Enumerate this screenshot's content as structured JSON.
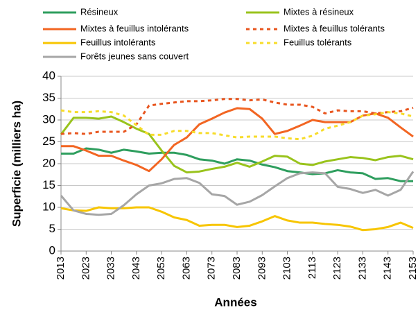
{
  "chart_data": {
    "type": "line",
    "x_label": "Années",
    "y_label": "Superficie (milliers ha)",
    "x": [
      2013,
      2018,
      2023,
      2028,
      2033,
      2038,
      2043,
      2048,
      2053,
      2058,
      2063,
      2068,
      2073,
      2078,
      2083,
      2088,
      2093,
      2098,
      2103,
      2108,
      2113,
      2118,
      2123,
      2128,
      2133,
      2138,
      2143,
      2148,
      2153
    ],
    "xlim": [
      2013,
      2153
    ],
    "xticks": [
      2013,
      2023,
      2033,
      2043,
      2053,
      2063,
      2073,
      2083,
      2093,
      2103,
      2113,
      2123,
      2133,
      2143,
      2153
    ],
    "ylim": [
      0,
      40
    ],
    "yticks": [
      0,
      5,
      10,
      15,
      20,
      25,
      30,
      35,
      40
    ],
    "grid": true,
    "series": [
      {
        "name": "Résineux",
        "color": "#2e9e5e",
        "style": "solid",
        "values": [
          22.3,
          22.3,
          23.5,
          23.2,
          22.5,
          23.2,
          22.8,
          22.3,
          22.5,
          22.5,
          22,
          21,
          20.7,
          20,
          21,
          20.7,
          19.8,
          19.2,
          18.3,
          18,
          17.6,
          17.8,
          18.5,
          18,
          17.8,
          16.5,
          16.7,
          16,
          16
        ]
      },
      {
        "name": "Mixtes à résineux",
        "color": "#99c31c",
        "style": "solid",
        "values": [
          26.7,
          30.5,
          30.5,
          30.3,
          30.8,
          29.5,
          28,
          26.8,
          23,
          19.5,
          18,
          18.2,
          18.8,
          19.3,
          20.2,
          19.3,
          20.5,
          21.8,
          21.6,
          20,
          19.7,
          20.5,
          21,
          21.5,
          21.3,
          20.8,
          21.5,
          21.8,
          21
        ]
      },
      {
        "name": "Mixtes à feuillus intolérants",
        "color": "#f26522",
        "style": "solid",
        "values": [
          24,
          24,
          23,
          21.8,
          21.8,
          20.7,
          19.7,
          18.3,
          21,
          24.3,
          26,
          29,
          30.3,
          31.7,
          32.7,
          32.5,
          30.3,
          26.8,
          27.5,
          28.7,
          30,
          29.5,
          29.5,
          29.5,
          31,
          31.5,
          30.5,
          28.3,
          26.2
        ]
      },
      {
        "name": "Mixtes à feuillus tolérants",
        "color": "#e8551e",
        "style": "dotted",
        "values": [
          26.8,
          27,
          26.8,
          27.3,
          27.3,
          27.3,
          29,
          33.3,
          33.7,
          34,
          34.3,
          34.3,
          34.5,
          34.8,
          34.8,
          34.5,
          34.7,
          34,
          33.5,
          33.5,
          33,
          31.5,
          32.2,
          32,
          32,
          31.5,
          31.8,
          32,
          32.8
        ]
      },
      {
        "name": "Feuillus intolérants",
        "color": "#f7c500",
        "style": "solid",
        "values": [
          9.8,
          9.3,
          9.2,
          10,
          9.8,
          9.8,
          10,
          10,
          9,
          7.7,
          7.1,
          5.8,
          6,
          6,
          5.5,
          5.8,
          6.8,
          8,
          7,
          6.5,
          6.5,
          6.2,
          6,
          5.6,
          4.8,
          5,
          5.5,
          6.5,
          5.3
        ]
      },
      {
        "name": "Feuillus tolérants",
        "color": "#f7dc2a",
        "style": "dotted",
        "values": [
          32.2,
          31.8,
          31.8,
          32,
          31.8,
          31,
          28.8,
          26.6,
          26.6,
          27.5,
          27.5,
          27,
          27,
          26.5,
          26,
          26.2,
          26.2,
          26.2,
          25.8,
          25.6,
          26.4,
          28,
          28.7,
          29.5,
          31,
          31.3,
          31.8,
          31.5,
          30.8
        ]
      },
      {
        "name": "Forêts jeunes sans couvert",
        "color": "#a6a6a6",
        "style": "solid",
        "values": [
          12.7,
          9.3,
          8.5,
          8.3,
          8.5,
          10.5,
          13,
          15,
          15.5,
          16.5,
          16.7,
          15.6,
          13,
          12.6,
          10.6,
          11.3,
          12.8,
          14.8,
          16.7,
          17.8,
          18,
          17.8,
          14.7,
          14.2,
          13.3,
          14,
          12.7,
          14,
          18.2
        ]
      }
    ]
  }
}
